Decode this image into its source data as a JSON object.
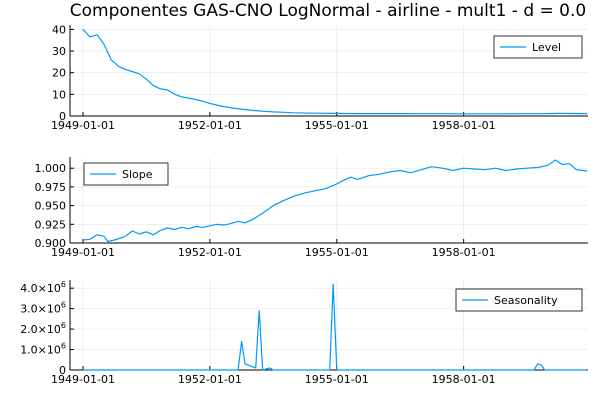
{
  "chart_title": "Componentes GAS-CNO LogNormal - airline - mult1 - d = 0.0",
  "colors": {
    "series": "#009af9",
    "axis": "#000000"
  },
  "chart_data": [
    {
      "type": "line",
      "title": "Componentes GAS-CNO LogNormal - airline - mult1 - d = 0.0",
      "xlabel": "",
      "ylabel": "",
      "xlim": [
        "1949-01-01",
        "1960-12-01"
      ],
      "ylim": [
        0,
        42
      ],
      "grid": true,
      "legend_position": "top-right",
      "x_tick_labels": [
        "1949-01-01",
        "1952-01-01",
        "1955-01-01",
        "1958-01-01"
      ],
      "y_tick_labels": [
        "0",
        "10",
        "20",
        "30",
        "40"
      ],
      "series": [
        {
          "name": "Level",
          "points": [
            [
              "1949-01-01",
              40
            ],
            [
              "1949-03-01",
              36.5
            ],
            [
              "1949-05-01",
              37.5
            ],
            [
              "1949-07-01",
              33
            ],
            [
              "1949-09-01",
              26
            ],
            [
              "1949-11-01",
              23
            ],
            [
              "1950-01-01",
              21.5
            ],
            [
              "1950-03-01",
              20.5
            ],
            [
              "1950-05-01",
              19.5
            ],
            [
              "1950-07-01",
              17
            ],
            [
              "1950-09-01",
              14
            ],
            [
              "1950-11-01",
              12.5
            ],
            [
              "1951-01-01",
              12
            ],
            [
              "1951-03-01",
              10
            ],
            [
              "1951-05-01",
              8.8
            ],
            [
              "1951-07-01",
              8.2
            ],
            [
              "1951-09-01",
              7.6
            ],
            [
              "1951-11-01",
              6.8
            ],
            [
              "1952-01-01",
              5.8
            ],
            [
              "1952-04-01",
              4.6
            ],
            [
              "1952-07-01",
              3.8
            ],
            [
              "1952-10-01",
              3.2
            ],
            [
              "1953-01-01",
              2.6
            ],
            [
              "1953-04-01",
              2.2
            ],
            [
              "1953-07-01",
              1.9
            ],
            [
              "1953-10-01",
              1.7
            ],
            [
              "1954-01-01",
              1.5
            ],
            [
              "1954-07-01",
              1.3
            ],
            [
              "1955-01-01",
              1.2
            ],
            [
              "1955-07-01",
              1.1
            ],
            [
              "1956-01-01",
              1.1
            ],
            [
              "1956-07-01",
              1.1
            ],
            [
              "1957-01-01",
              1.05
            ],
            [
              "1957-07-01",
              1.05
            ],
            [
              "1958-01-01",
              1.0
            ],
            [
              "1958-07-01",
              1.0
            ],
            [
              "1959-01-01",
              1.0
            ],
            [
              "1959-07-01",
              1.05
            ],
            [
              "1960-01-01",
              1.1
            ],
            [
              "1960-04-01",
              1.25
            ],
            [
              "1960-08-01",
              1.15
            ],
            [
              "1960-12-01",
              1.1
            ]
          ]
        }
      ]
    },
    {
      "type": "line",
      "xlabel": "",
      "ylabel": "",
      "xlim": [
        "1949-01-01",
        "1960-12-01"
      ],
      "ylim": [
        0.9,
        1.015
      ],
      "grid": true,
      "legend_position": "top-left",
      "x_tick_labels": [
        "1949-01-01",
        "1952-01-01",
        "1955-01-01",
        "1958-01-01"
      ],
      "y_tick_labels": [
        "0.900",
        "0.925",
        "0.950",
        "0.975",
        "1.000"
      ],
      "series": [
        {
          "name": "Slope",
          "points": [
            [
              "1949-01-01",
              0.904
            ],
            [
              "1949-03-01",
              0.905
            ],
            [
              "1949-05-01",
              0.911
            ],
            [
              "1949-07-01",
              0.909
            ],
            [
              "1949-08-01",
              0.902
            ],
            [
              "1949-10-01",
              0.904
            ],
            [
              "1950-01-01",
              0.909
            ],
            [
              "1950-03-01",
              0.916
            ],
            [
              "1950-05-01",
              0.912
            ],
            [
              "1950-07-01",
              0.915
            ],
            [
              "1950-09-01",
              0.911
            ],
            [
              "1950-11-01",
              0.917
            ],
            [
              "1951-01-01",
              0.92
            ],
            [
              "1951-03-01",
              0.918
            ],
            [
              "1951-05-01",
              0.921
            ],
            [
              "1951-07-01",
              0.919
            ],
            [
              "1951-09-01",
              0.922
            ],
            [
              "1951-11-01",
              0.921
            ],
            [
              "1952-01-01",
              0.923
            ],
            [
              "1952-03-01",
              0.925
            ],
            [
              "1952-05-01",
              0.924
            ],
            [
              "1952-07-01",
              0.926
            ],
            [
              "1952-09-01",
              0.929
            ],
            [
              "1952-11-01",
              0.927
            ],
            [
              "1953-01-01",
              0.931
            ],
            [
              "1953-04-01",
              0.94
            ],
            [
              "1953-07-01",
              0.95
            ],
            [
              "1953-10-01",
              0.957
            ],
            [
              "1954-01-01",
              0.963
            ],
            [
              "1954-04-01",
              0.967
            ],
            [
              "1954-07-01",
              0.97
            ],
            [
              "1954-10-01",
              0.973
            ],
            [
              "1955-01-01",
              0.979
            ],
            [
              "1955-03-01",
              0.984
            ],
            [
              "1955-05-01",
              0.988
            ],
            [
              "1955-07-01",
              0.985
            ],
            [
              "1955-10-01",
              0.99
            ],
            [
              "1956-01-01",
              0.992
            ],
            [
              "1956-04-01",
              0.995
            ],
            [
              "1956-07-01",
              0.997
            ],
            [
              "1956-10-01",
              0.994
            ],
            [
              "1957-01-01",
              0.998
            ],
            [
              "1957-04-01",
              1.002
            ],
            [
              "1957-07-01",
              1.0
            ],
            [
              "1957-10-01",
              0.997
            ],
            [
              "1958-01-01",
              1.0
            ],
            [
              "1958-04-01",
              0.999
            ],
            [
              "1958-07-01",
              0.998
            ],
            [
              "1958-10-01",
              1.0
            ],
            [
              "1959-01-01",
              0.997
            ],
            [
              "1959-04-01",
              0.999
            ],
            [
              "1959-07-01",
              1.0
            ],
            [
              "1959-10-01",
              1.001
            ],
            [
              "1960-01-01",
              1.004
            ],
            [
              "1960-03-01",
              1.011
            ],
            [
              "1960-05-01",
              1.005
            ],
            [
              "1960-07-01",
              1.006
            ],
            [
              "1960-09-01",
              0.998
            ],
            [
              "1960-11-01",
              0.997
            ],
            [
              "1960-12-01",
              0.996
            ]
          ]
        }
      ]
    },
    {
      "type": "line",
      "xlabel": "",
      "ylabel": "",
      "xlim": [
        "1949-01-01",
        "1960-12-01"
      ],
      "ylim": [
        0,
        4400000
      ],
      "grid": true,
      "legend_position": "top-right",
      "x_tick_labels": [
        "1949-01-01",
        "1952-01-01",
        "1955-01-01",
        "1958-01-01"
      ],
      "y_tick_labels": [
        {
          "mantissa": "0",
          "exp": ""
        },
        {
          "mantissa": "1.0×10",
          "exp": "6"
        },
        {
          "mantissa": "2.0×10",
          "exp": "6"
        },
        {
          "mantissa": "3.0×10",
          "exp": "6"
        },
        {
          "mantissa": "4.0×10",
          "exp": "6"
        }
      ],
      "series": [
        {
          "name": "Seasonality",
          "points": [
            [
              "1949-01-01",
              0
            ],
            [
              "1952-09-01",
              0
            ],
            [
              "1952-10-01",
              1400000
            ],
            [
              "1952-11-01",
              300000
            ],
            [
              "1953-02-01",
              100000
            ],
            [
              "1953-03-01",
              2900000
            ],
            [
              "1953-04-01",
              0
            ],
            [
              "1953-06-01",
              100000
            ],
            [
              "1953-07-01",
              0
            ],
            [
              "1954-11-01",
              0
            ],
            [
              "1954-12-01",
              4200000
            ],
            [
              "1955-01-01",
              0
            ],
            [
              "1959-09-01",
              0
            ],
            [
              "1959-10-01",
              300000
            ],
            [
              "1959-11-01",
              250000
            ],
            [
              "1959-12-01",
              0
            ],
            [
              "1960-12-01",
              0
            ]
          ]
        }
      ]
    }
  ]
}
